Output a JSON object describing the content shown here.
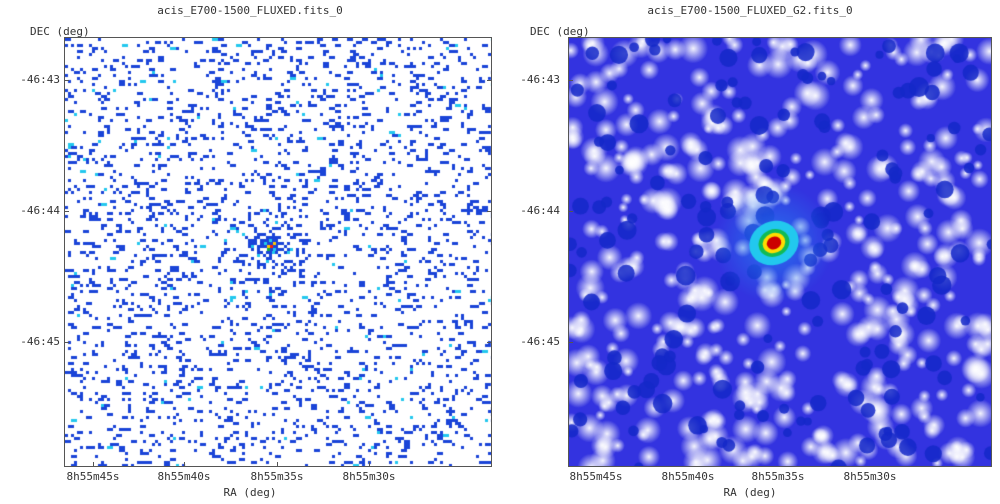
{
  "panels": [
    {
      "title": "acis_E700-1500_FLUXED.fits_0",
      "ylabel": "DEC (deg)",
      "xlabel": "RA (deg)",
      "yticks": [
        "-46:43",
        "-46:44",
        "-46:45"
      ],
      "xticks": [
        "8h55m45s",
        "8h55m40s",
        "8h55m35s",
        "8h55m30s"
      ],
      "image_type": "binned-counts",
      "colors": {
        "background": "#ffffff",
        "low": "#1a44d8",
        "mid": "#22c8ee",
        "peak": "#ff2200"
      }
    },
    {
      "title": "acis_E700-1500_FLUXED_G2.fits_0",
      "ylabel": "DEC (deg)",
      "xlabel": "RA (deg)",
      "yticks": [
        "-46:43",
        "-46:44",
        "-46:45"
      ],
      "xticks": [
        "8h55m45s",
        "8h55m40s",
        "8h55m35s",
        "8h55m30s"
      ],
      "image_type": "gaussian-smoothed",
      "colors": {
        "background": "#3333e0",
        "low": "#ffffff",
        "mid": "#22c8ee",
        "peak": "#cc0000"
      }
    }
  ]
}
